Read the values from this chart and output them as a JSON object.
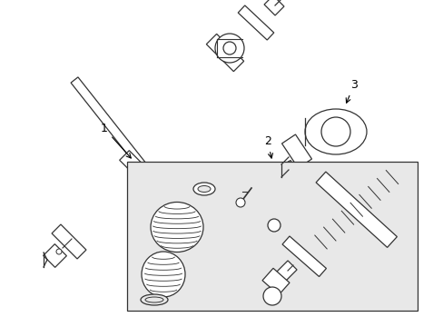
{
  "background_color": "#ffffff",
  "box_bg_color": "#e8e8e8",
  "line_color": "#333333",
  "label_1": "1",
  "label_2": "2",
  "label_3": "3",
  "figsize": [
    4.89,
    3.6
  ],
  "dpi": 100
}
